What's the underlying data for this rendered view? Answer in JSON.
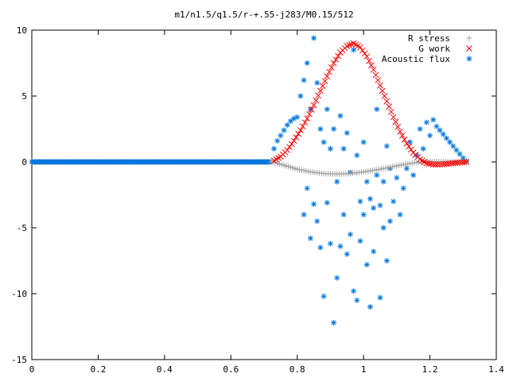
{
  "chart_data": {
    "type": "scatter",
    "title": "m1/n1.5/q1.5/r-+.55-j283/M0.15/512",
    "xlabel": "",
    "ylabel": "",
    "xlim": [
      0,
      1.4
    ],
    "ylim": [
      -15,
      10
    ],
    "xticks": [
      0,
      0.2,
      0.4,
      0.6,
      0.8,
      1,
      1.2,
      1.4
    ],
    "yticks": [
      -15,
      -10,
      -5,
      0,
      5,
      10
    ],
    "xtick_labels": [
      "0",
      "0.2",
      "0.4",
      "0.6",
      "0.8",
      "1",
      "1.2",
      "1.4"
    ],
    "ytick_labels": [
      "-15",
      "-10",
      "-5",
      "0",
      "5",
      "10"
    ],
    "grid": false,
    "legend_position": "top-right",
    "series": [
      {
        "name": "R stress",
        "marker": "plus",
        "color": "#a0a0a0",
        "x": [
          0.72,
          0.74,
          0.76,
          0.78,
          0.8,
          0.82,
          0.84,
          0.86,
          0.88,
          0.9,
          0.92,
          0.94,
          0.96,
          0.98,
          1.0,
          1.02,
          1.04,
          1.06,
          1.08,
          1.1,
          1.12,
          1.14,
          1.16,
          1.18,
          1.2,
          1.22,
          1.24,
          1.26,
          1.28,
          1.3,
          1.31
        ],
        "y": [
          0.0,
          -0.1,
          -0.25,
          -0.4,
          -0.55,
          -0.65,
          -0.75,
          -0.82,
          -0.88,
          -0.9,
          -0.92,
          -0.9,
          -0.87,
          -0.82,
          -0.75,
          -0.68,
          -0.6,
          -0.5,
          -0.4,
          -0.3,
          -0.2,
          -0.12,
          -0.05,
          0.0,
          0.02,
          0.03,
          0.02,
          0.01,
          0.0,
          0.0,
          0.0
        ]
      },
      {
        "name": "G work",
        "marker": "cross",
        "color": "#ff0000",
        "x": [
          0.73,
          0.75,
          0.77,
          0.79,
          0.81,
          0.83,
          0.85,
          0.87,
          0.89,
          0.91,
          0.93,
          0.95,
          0.97,
          0.99,
          1.01,
          1.03,
          1.05,
          1.07,
          1.09,
          1.11,
          1.13,
          1.15,
          1.17,
          1.19,
          1.21,
          1.23,
          1.25,
          1.27,
          1.29,
          1.31
        ],
        "y": [
          0.1,
          0.4,
          0.9,
          1.6,
          2.4,
          3.3,
          4.3,
          5.4,
          6.5,
          7.5,
          8.3,
          8.8,
          9.0,
          8.7,
          8.0,
          7.0,
          5.8,
          4.6,
          3.4,
          2.3,
          1.4,
          0.7,
          0.2,
          -0.1,
          -0.2,
          -0.2,
          -0.15,
          -0.1,
          -0.05,
          0.0
        ]
      },
      {
        "name": "Acoustic flux",
        "marker": "star",
        "color": "#0077dd",
        "x": [
          0.73,
          0.74,
          0.75,
          0.76,
          0.77,
          0.78,
          0.79,
          0.8,
          0.81,
          0.82,
          0.82,
          0.83,
          0.83,
          0.84,
          0.84,
          0.85,
          0.85,
          0.86,
          0.86,
          0.87,
          0.87,
          0.88,
          0.88,
          0.89,
          0.89,
          0.9,
          0.9,
          0.91,
          0.91,
          0.92,
          0.92,
          0.93,
          0.93,
          0.94,
          0.94,
          0.95,
          0.95,
          0.96,
          0.96,
          0.97,
          0.97,
          0.98,
          0.98,
          0.99,
          0.99,
          1.0,
          1.0,
          1.01,
          1.01,
          1.02,
          1.02,
          1.03,
          1.03,
          1.04,
          1.04,
          1.05,
          1.05,
          1.06,
          1.06,
          1.07,
          1.07,
          1.08,
          1.08,
          1.09,
          1.1,
          1.11,
          1.12,
          1.13,
          1.14,
          1.15,
          1.16,
          1.17,
          1.18,
          1.19,
          1.2,
          1.21,
          1.22,
          1.23,
          1.24,
          1.25,
          1.26,
          1.27,
          1.28,
          1.29,
          1.3,
          1.31
        ],
        "y": [
          1.0,
          1.6,
          2.0,
          2.4,
          2.8,
          3.1,
          3.3,
          3.4,
          5.0,
          6.2,
          -4.0,
          7.5,
          -2.0,
          4.0,
          -5.8,
          9.4,
          -3.2,
          6.0,
          -4.5,
          2.5,
          -6.5,
          1.5,
          -10.2,
          4.0,
          -3.1,
          -6.2,
          1.0,
          -12.2,
          2.5,
          -8.8,
          -1.5,
          -6.4,
          3.5,
          -4.0,
          1.0,
          -7.0,
          2.2,
          -5.5,
          -0.8,
          -9.8,
          8.5,
          -10.5,
          0.5,
          -3.0,
          -6.0,
          -4.0,
          1.5,
          -7.8,
          -1.5,
          -11.0,
          -2.8,
          -3.5,
          -6.8,
          4.0,
          -1.0,
          -10.3,
          -3.3,
          -5.0,
          -1.5,
          -7.5,
          1.2,
          -4.5,
          -0.5,
          -3.0,
          -1.2,
          -4.0,
          -2.0,
          -0.5,
          1.5,
          -1.0,
          0.5,
          2.5,
          1.0,
          3.0,
          2.0,
          3.2,
          2.7,
          2.4,
          2.1,
          1.8,
          1.5,
          1.2,
          0.9,
          0.6,
          0.3,
          0.05
        ]
      }
    ],
    "zero_line_series": {
      "name": "Acoustic flux",
      "x_start": 0,
      "x_end": 0.72,
      "y": 0
    }
  }
}
